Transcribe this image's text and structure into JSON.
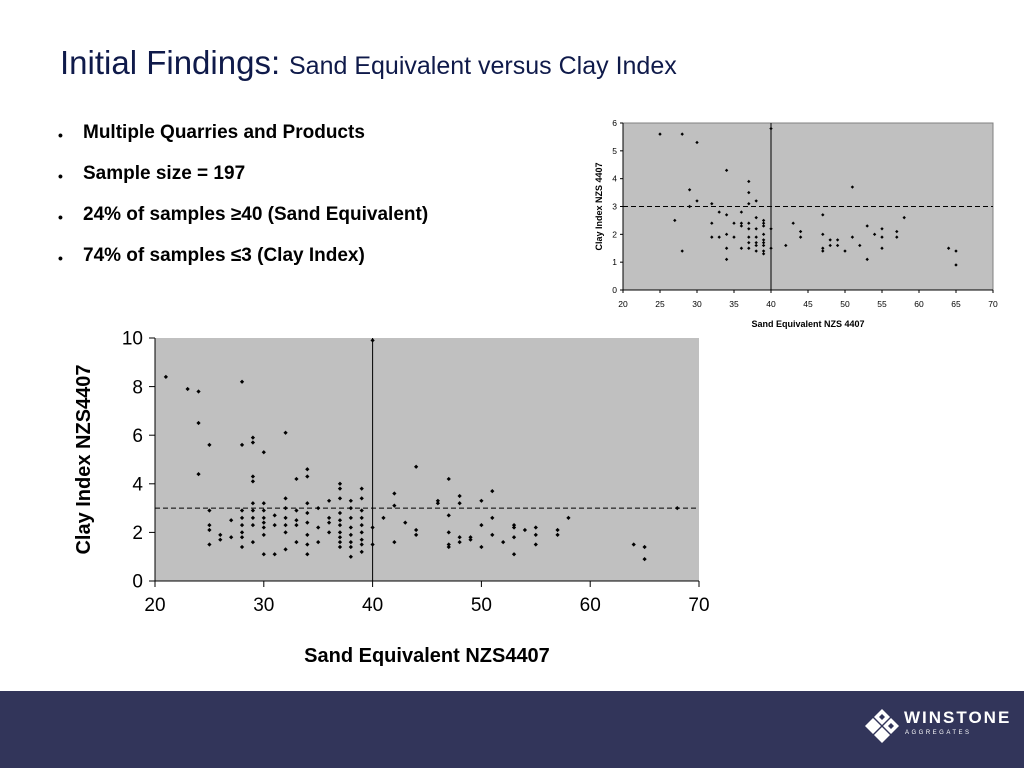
{
  "slide": {
    "title_main": "Initial Findings:",
    "title_sub": "Sand Equivalent versus Clay Index",
    "bullets": [
      "Multiple Quarries and Products",
      "Sample size = 197",
      "24% of samples ≥40 (Sand Equivalent)",
      "74% of samples ≤3 (Clay Index)"
    ],
    "bullet_glyph": "•"
  },
  "footer": {
    "logo_text": "WINSTONE",
    "logo_sub": "AGGREGATES",
    "logo_icon": "winstone-diamond-logo-icon",
    "background": "#32355a"
  },
  "colors": {
    "plot_area": "#c0c0c0",
    "title": "#0f1a4a",
    "marker": "#000000"
  },
  "chart_data": [
    {
      "type": "scatter",
      "xlabel": "Sand Equivalent NZS 4407",
      "ylabel": "Clay Index NZS 4407",
      "xlim": [
        20,
        70
      ],
      "ylim": [
        0,
        6
      ],
      "xticks": [
        "20",
        "25",
        "30",
        "35",
        "40",
        "45",
        "50",
        "55",
        "60",
        "65",
        "70"
      ],
      "yticks": [
        "0",
        "1",
        "2",
        "3",
        "4",
        "5",
        "6"
      ],
      "grid": false,
      "reference_lines": [
        {
          "orientation": "vertical",
          "value": 40,
          "style": "solid"
        },
        {
          "orientation": "horizontal",
          "value": 3,
          "style": "dashed"
        }
      ],
      "points": [
        [
          25,
          5.6
        ],
        [
          28,
          5.6
        ],
        [
          30,
          5.3
        ],
        [
          28,
          1.4
        ],
        [
          29,
          3.6
        ],
        [
          30,
          3.2
        ],
        [
          27,
          2.5
        ],
        [
          29,
          3.0
        ],
        [
          32,
          3.1
        ],
        [
          33,
          2.8
        ],
        [
          32,
          2.4
        ],
        [
          32,
          1.9
        ],
        [
          33,
          1.9
        ],
        [
          34,
          4.3
        ],
        [
          34,
          2.7
        ],
        [
          34,
          2.0
        ],
        [
          34,
          1.5
        ],
        [
          34,
          1.1
        ],
        [
          35,
          1.9
        ],
        [
          35,
          2.4
        ],
        [
          36,
          2.8
        ],
        [
          36,
          2.4
        ],
        [
          36,
          2.3
        ],
        [
          36,
          1.5
        ],
        [
          37,
          3.9
        ],
        [
          37,
          3.5
        ],
        [
          37,
          3.1
        ],
        [
          37,
          2.4
        ],
        [
          37,
          2.2
        ],
        [
          37,
          1.9
        ],
        [
          37,
          1.7
        ],
        [
          37,
          1.5
        ],
        [
          38,
          3.2
        ],
        [
          38,
          2.6
        ],
        [
          38,
          2.2
        ],
        [
          38,
          1.9
        ],
        [
          38,
          1.7
        ],
        [
          38,
          1.6
        ],
        [
          38,
          1.4
        ],
        [
          39,
          2.5
        ],
        [
          39,
          2.4
        ],
        [
          39,
          2.3
        ],
        [
          39,
          2.0
        ],
        [
          39,
          1.8
        ],
        [
          39,
          1.7
        ],
        [
          39,
          1.6
        ],
        [
          39,
          1.4
        ],
        [
          39,
          1.3
        ],
        [
          40,
          5.8
        ],
        [
          40,
          2.2
        ],
        [
          40,
          1.5
        ],
        [
          42,
          1.6
        ],
        [
          43,
          2.4
        ],
        [
          44,
          2.1
        ],
        [
          44,
          1.9
        ],
        [
          47,
          2.7
        ],
        [
          47,
          2.0
        ],
        [
          47,
          1.5
        ],
        [
          47,
          1.4
        ],
        [
          48,
          1.8
        ],
        [
          48,
          1.6
        ],
        [
          49,
          1.8
        ],
        [
          49,
          1.6
        ],
        [
          50,
          1.4
        ],
        [
          51,
          3.7
        ],
        [
          51,
          1.9
        ],
        [
          52,
          1.6
        ],
        [
          53,
          2.3
        ],
        [
          53,
          1.1
        ],
        [
          54,
          2.0
        ],
        [
          55,
          2.2
        ],
        [
          55,
          1.9
        ],
        [
          55,
          1.5
        ],
        [
          57,
          2.1
        ],
        [
          57,
          1.9
        ],
        [
          58,
          2.6
        ],
        [
          64,
          1.5
        ],
        [
          65,
          1.4
        ],
        [
          65,
          0.9
        ]
      ]
    },
    {
      "type": "scatter",
      "xlabel": "Sand Equivalent NZS4407",
      "ylabel": "Clay Index NZS4407",
      "xlim": [
        20,
        70
      ],
      "ylim": [
        0,
        10
      ],
      "xticks": [
        "20",
        "30",
        "40",
        "50",
        "60",
        "70"
      ],
      "yticks": [
        "0",
        "2",
        "4",
        "6",
        "8",
        "10"
      ],
      "grid": false,
      "reference_lines": [
        {
          "orientation": "vertical",
          "value": 40,
          "style": "solid"
        },
        {
          "orientation": "horizontal",
          "value": 3,
          "style": "dashed"
        }
      ],
      "points": [
        [
          21,
          8.4
        ],
        [
          23,
          7.9
        ],
        [
          24,
          7.8
        ],
        [
          24,
          6.5
        ],
        [
          24,
          4.4
        ],
        [
          25,
          5.6
        ],
        [
          25,
          2.9
        ],
        [
          25,
          2.3
        ],
        [
          25,
          2.1
        ],
        [
          25,
          1.5
        ],
        [
          26,
          1.9
        ],
        [
          26,
          1.7
        ],
        [
          27,
          2.5
        ],
        [
          27,
          1.8
        ],
        [
          28,
          8.2
        ],
        [
          28,
          5.6
        ],
        [
          28,
          2.9
        ],
        [
          28,
          2.6
        ],
        [
          28,
          2.3
        ],
        [
          28,
          2.0
        ],
        [
          28,
          1.8
        ],
        [
          28,
          1.4
        ],
        [
          29,
          5.9
        ],
        [
          29,
          5.7
        ],
        [
          29,
          4.3
        ],
        [
          29,
          4.1
        ],
        [
          29,
          3.2
        ],
        [
          29,
          2.9
        ],
        [
          29,
          2.6
        ],
        [
          29,
          2.3
        ],
        [
          29,
          1.6
        ],
        [
          30,
          5.3
        ],
        [
          30,
          3.2
        ],
        [
          30,
          2.9
        ],
        [
          30,
          2.6
        ],
        [
          30,
          2.4
        ],
        [
          30,
          2.2
        ],
        [
          30,
          1.9
        ],
        [
          30,
          1.1
        ],
        [
          31,
          2.7
        ],
        [
          31,
          2.3
        ],
        [
          31,
          1.1
        ],
        [
          32,
          6.1
        ],
        [
          32,
          3.4
        ],
        [
          32,
          3.0
        ],
        [
          32,
          2.6
        ],
        [
          32,
          2.3
        ],
        [
          32,
          2.0
        ],
        [
          32,
          1.3
        ],
        [
          33,
          4.2
        ],
        [
          33,
          2.9
        ],
        [
          33,
          2.5
        ],
        [
          33,
          2.3
        ],
        [
          33,
          1.6
        ],
        [
          34,
          4.6
        ],
        [
          34,
          4.3
        ],
        [
          34,
          3.2
        ],
        [
          34,
          2.8
        ],
        [
          34,
          2.4
        ],
        [
          34,
          1.9
        ],
        [
          34,
          1.5
        ],
        [
          34,
          1.1
        ],
        [
          35,
          3.0
        ],
        [
          35,
          2.2
        ],
        [
          35,
          1.6
        ],
        [
          36,
          3.3
        ],
        [
          36,
          2.6
        ],
        [
          36,
          2.4
        ],
        [
          36,
          2.0
        ],
        [
          37,
          4.0
        ],
        [
          37,
          3.8
        ],
        [
          37,
          3.4
        ],
        [
          37,
          2.8
        ],
        [
          37,
          2.5
        ],
        [
          37,
          2.3
        ],
        [
          37,
          2.0
        ],
        [
          37,
          1.8
        ],
        [
          37,
          1.6
        ],
        [
          37,
          1.4
        ],
        [
          38,
          3.3
        ],
        [
          38,
          3.0
        ],
        [
          38,
          2.6
        ],
        [
          38,
          2.2
        ],
        [
          38,
          1.9
        ],
        [
          38,
          1.6
        ],
        [
          38,
          1.4
        ],
        [
          38,
          1.0
        ],
        [
          39,
          3.8
        ],
        [
          39,
          3.4
        ],
        [
          39,
          2.9
        ],
        [
          39,
          2.6
        ],
        [
          39,
          2.3
        ],
        [
          39,
          2.0
        ],
        [
          39,
          1.7
        ],
        [
          39,
          1.5
        ],
        [
          39,
          1.2
        ],
        [
          40,
          9.9
        ],
        [
          40,
          2.2
        ],
        [
          40,
          1.5
        ],
        [
          41,
          2.6
        ],
        [
          42,
          3.6
        ],
        [
          42,
          3.1
        ],
        [
          42,
          1.6
        ],
        [
          43,
          2.4
        ],
        [
          44,
          4.7
        ],
        [
          44,
          2.1
        ],
        [
          44,
          1.9
        ],
        [
          46,
          3.3
        ],
        [
          46,
          3.2
        ],
        [
          47,
          4.2
        ],
        [
          47,
          2.7
        ],
        [
          47,
          2.0
        ],
        [
          47,
          1.5
        ],
        [
          47,
          1.4
        ],
        [
          48,
          3.5
        ],
        [
          48,
          3.2
        ],
        [
          48,
          1.8
        ],
        [
          48,
          1.6
        ],
        [
          49,
          1.8
        ],
        [
          49,
          1.7
        ],
        [
          50,
          3.3
        ],
        [
          50,
          2.3
        ],
        [
          50,
          1.4
        ],
        [
          51,
          3.7
        ],
        [
          51,
          2.6
        ],
        [
          51,
          1.9
        ],
        [
          52,
          1.6
        ],
        [
          53,
          2.3
        ],
        [
          53,
          2.2
        ],
        [
          53,
          1.8
        ],
        [
          53,
          1.1
        ],
        [
          54,
          2.1
        ],
        [
          55,
          2.2
        ],
        [
          55,
          1.9
        ],
        [
          55,
          1.5
        ],
        [
          57,
          2.1
        ],
        [
          57,
          1.9
        ],
        [
          58,
          2.6
        ],
        [
          64,
          1.5
        ],
        [
          65,
          1.4
        ],
        [
          65,
          0.9
        ],
        [
          68,
          3.0
        ]
      ]
    }
  ]
}
